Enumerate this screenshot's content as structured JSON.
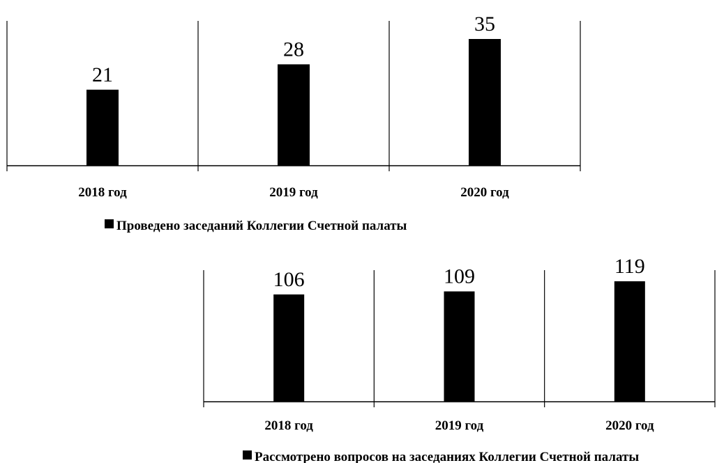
{
  "chart_data": [
    {
      "type": "bar",
      "categories": [
        "2018 год",
        "2019 год",
        "2020 год"
      ],
      "series": [
        {
          "name": "Проведено заседаний Коллегии Счетной палаты",
          "values": [
            21,
            28,
            35
          ],
          "color": "#000000"
        }
      ],
      "title": "",
      "xlabel": "",
      "ylabel": "",
      "ylim": [
        0,
        40
      ],
      "grid": false,
      "data_labels": true,
      "legend_position": "bottom"
    },
    {
      "type": "bar",
      "categories": [
        "2018 год",
        "2019 год",
        "2020 год"
      ],
      "series": [
        {
          "name": "Рассмотрено вопросов на заседаниях Коллегии Счетной палаты",
          "values": [
            106,
            109,
            119
          ],
          "color": "#000000"
        }
      ],
      "title": "",
      "xlabel": "",
      "ylabel": "",
      "ylim": [
        0,
        130
      ],
      "grid": false,
      "data_labels": true,
      "legend_position": "bottom"
    }
  ]
}
